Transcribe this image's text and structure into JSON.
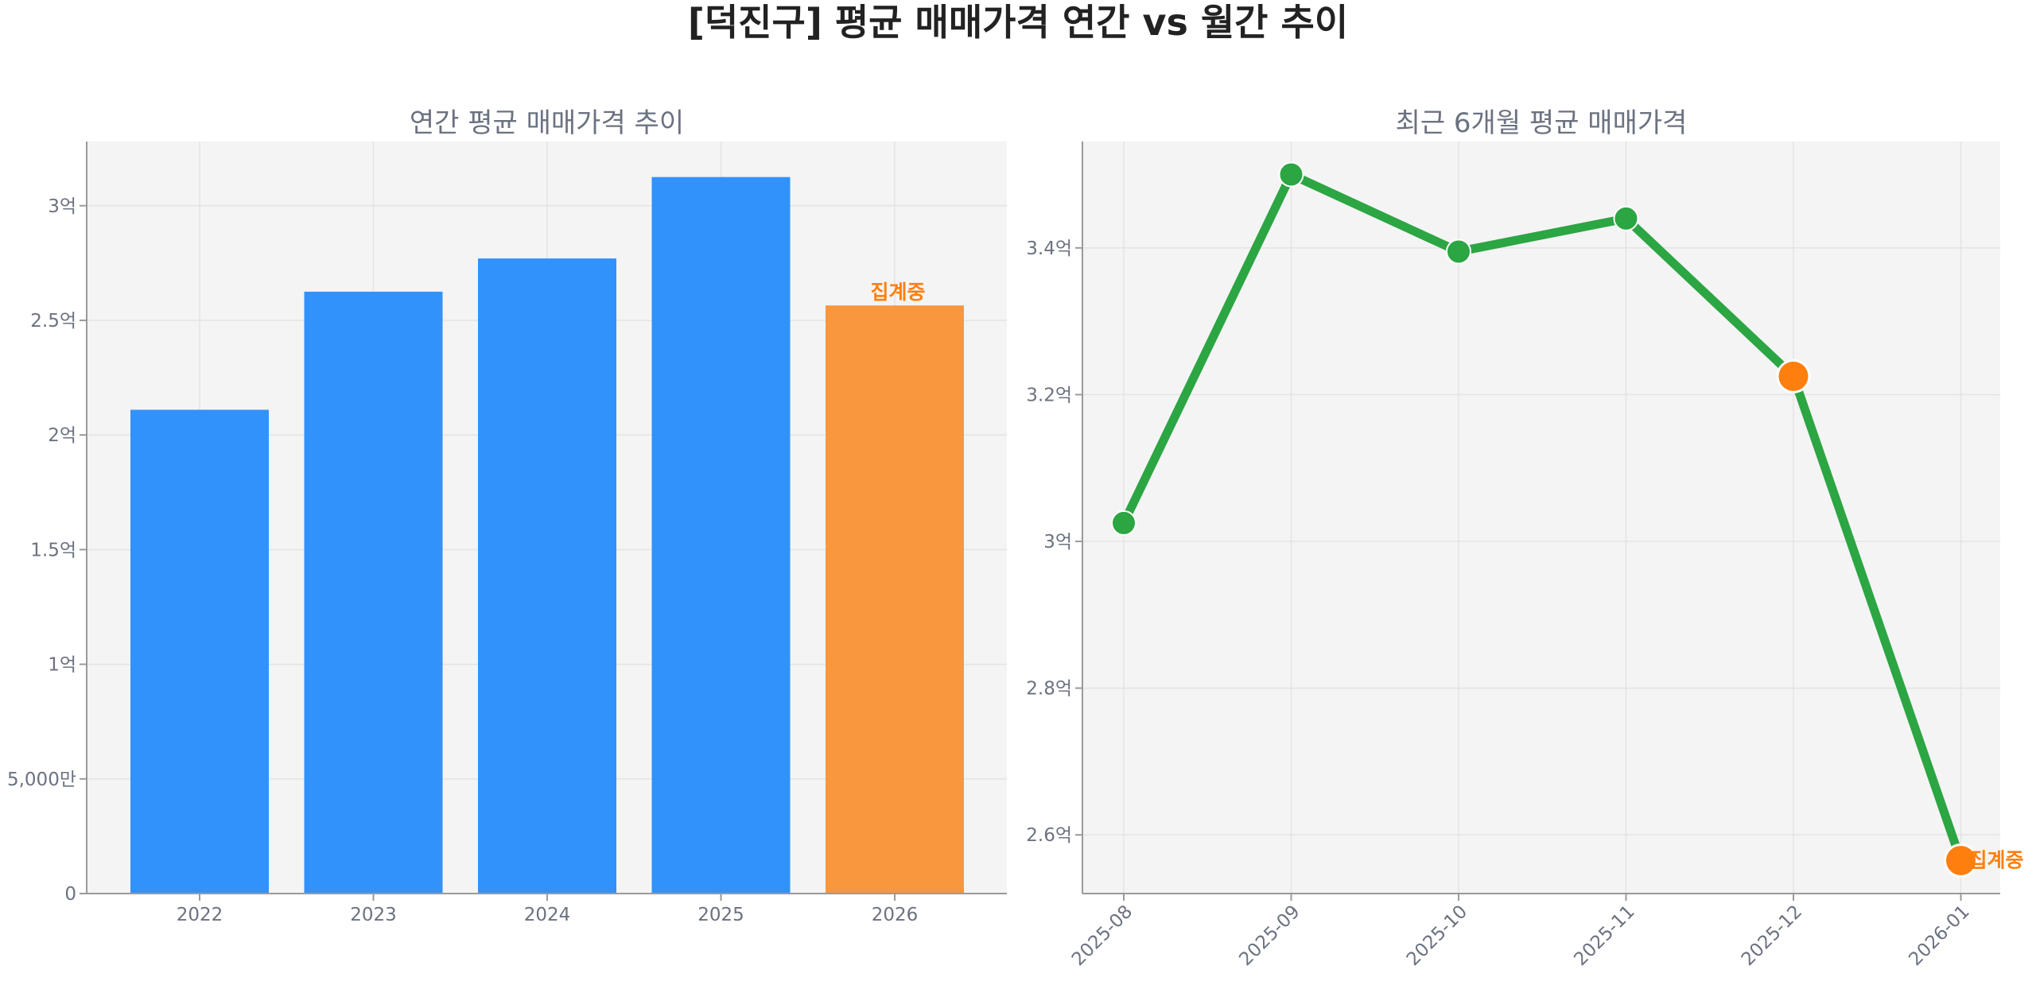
{
  "figure": {
    "title": "[덕진구] 평균 매매가격 연간 vs 월간 추이"
  },
  "colors": {
    "bar": "#3292fb",
    "bar_partial": "#f9973f",
    "line": "#2ca543",
    "partial_point": "#ff7f0e",
    "annotation": "#ff7f0e"
  },
  "chart_data": [
    {
      "type": "bar",
      "title": "연간 평균 매매가격 추이",
      "xlabel": "",
      "ylabel": "",
      "categories": [
        "2022",
        "2023",
        "2024",
        "2025",
        "2026"
      ],
      "values": [
        211000000,
        262500000,
        277000000,
        312500000,
        256500000
      ],
      "partial_index": 4,
      "partial_label": "집계중",
      "ylim": [
        0,
        328000000
      ],
      "yticks": [
        {
          "value": 0,
          "label": "0"
        },
        {
          "value": 50000000,
          "label": "5,000만"
        },
        {
          "value": 100000000,
          "label": "1억"
        },
        {
          "value": 150000000,
          "label": "1.5억"
        },
        {
          "value": 200000000,
          "label": "2억"
        },
        {
          "value": 250000000,
          "label": "2.5억"
        },
        {
          "value": 300000000,
          "label": "3억"
        }
      ],
      "grid": true
    },
    {
      "type": "line",
      "title": "최근 6개월 평균 매매가격",
      "xlabel": "",
      "ylabel": "",
      "categories": [
        "2025-08",
        "2025-09",
        "2025-10",
        "2025-11",
        "2025-12",
        "2026-01"
      ],
      "values": [
        302500000,
        350000000,
        339500000,
        344000000,
        322500000,
        256500000
      ],
      "partial_indices": [
        4,
        5
      ],
      "partial_label": "집계중",
      "partial_label_index": 5,
      "ylim": [
        252000000,
        354500000
      ],
      "yticks": [
        {
          "value": 260000000,
          "label": "2.6억"
        },
        {
          "value": 280000000,
          "label": "2.8억"
        },
        {
          "value": 300000000,
          "label": "3억"
        },
        {
          "value": 320000000,
          "label": "3.2억"
        },
        {
          "value": 340000000,
          "label": "3.4억"
        }
      ],
      "xtick_rotation": 45,
      "grid": true
    }
  ]
}
